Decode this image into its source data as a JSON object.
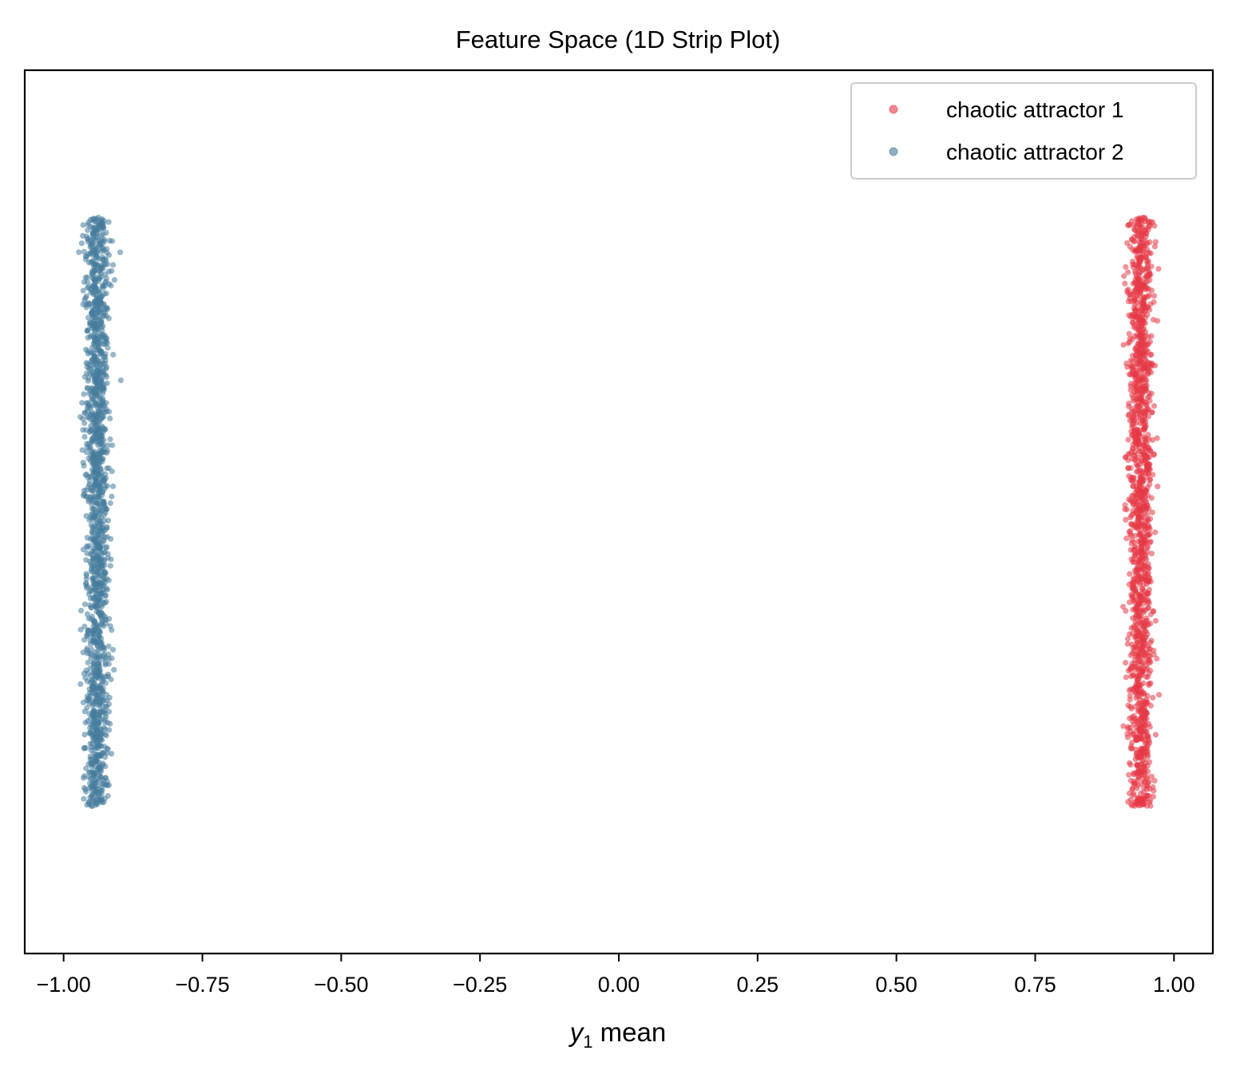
{
  "chart_data": {
    "type": "scatter",
    "title": "Feature Space (1D Strip Plot)",
    "xlabel": {
      "variable": "y",
      "subscript": "1",
      "suffix": " mean"
    },
    "ylabel": "",
    "xlim": [
      -1.07,
      1.07
    ],
    "ylim": [
      -0.25,
      1.25
    ],
    "xticks": [
      -1.0,
      -0.75,
      -0.5,
      -0.25,
      0.0,
      0.25,
      0.5,
      0.75,
      1.0
    ],
    "xtick_labels": [
      "−1.00",
      "−0.75",
      "−0.50",
      "−0.25",
      "0.00",
      "0.25",
      "0.50",
      "0.75",
      "1.00"
    ],
    "yticks_visible": false,
    "grid": false,
    "legend": {
      "placement": "top-right",
      "entries": [
        "chaotic attractor 1",
        "chaotic attractor 2"
      ]
    },
    "series": [
      {
        "name": "chaotic attractor 1",
        "color": "#E63946",
        "x_center": 0.94,
        "x_spread": 0.02,
        "x_range": [
          0.905,
          0.98
        ],
        "y_range": [
          0.0,
          1.0
        ],
        "point_count": 1500
      },
      {
        "name": "chaotic attractor 2",
        "color": "#457B9D",
        "x_center": -0.94,
        "x_spread": 0.02,
        "x_range": [
          -0.975,
          -0.895
        ],
        "y_range": [
          0.0,
          1.0
        ],
        "point_count": 1500
      }
    ]
  }
}
